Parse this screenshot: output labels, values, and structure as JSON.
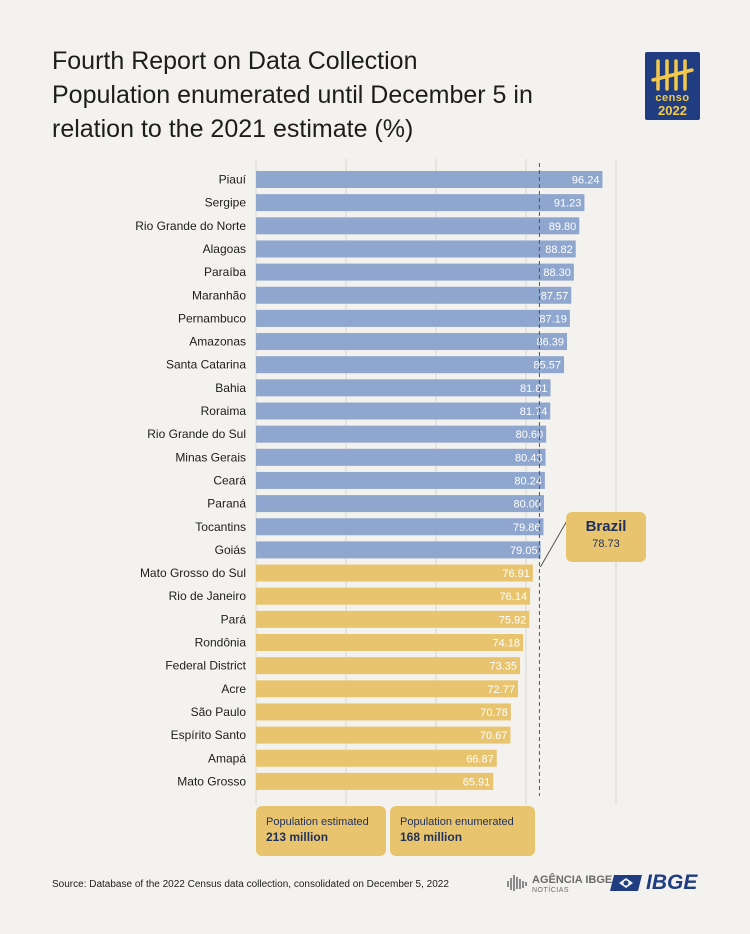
{
  "header": {
    "title": "Fourth Report on Data Collection",
    "subtitle_line1": "Population enumerated until December 5 in",
    "subtitle_line2": "relation to the 2021 estimate (%)"
  },
  "logo": {
    "icon": "censo-2022-logo-icon",
    "word": "censo",
    "year": "2022"
  },
  "chart_data": {
    "type": "bar",
    "orientation": "horizontal",
    "title": "Population enumerated until December 5 in relation to the 2021 estimate (%)",
    "categories": [
      "Piauí",
      "Sergipe",
      "Rio Grande do Norte",
      "Alagoas",
      "Paraíba",
      "Maranhão",
      "Pernambuco",
      "Amazonas",
      "Santa Catarina",
      "Bahia",
      "Roraima",
      "Rio Grande do Sul",
      "Minas Gerais",
      "Ceará",
      "Paraná",
      "Tocantins",
      "Goiás",
      "Mato Grosso do Sul",
      "Rio de Janeiro",
      "Pará",
      "Rondônia",
      "Federal District",
      "Acre",
      "São Paulo",
      "Espírito Santo",
      "Amapá",
      "Mato Grosso"
    ],
    "values": [
      96.24,
      91.23,
      89.8,
      88.82,
      88.3,
      87.57,
      87.19,
      86.39,
      85.57,
      81.81,
      81.74,
      80.6,
      80.43,
      80.24,
      80.0,
      79.86,
      79.05,
      76.91,
      76.14,
      75.92,
      74.18,
      73.35,
      72.77,
      70.78,
      70.67,
      66.87,
      65.91
    ],
    "value_labels": [
      "96.24",
      "91.23",
      "89.80",
      "88.82",
      "88.30",
      "87.57",
      "87.19",
      "86.39",
      "85.57",
      "81.81",
      "81.74",
      "80.60",
      "80.43",
      "80.24",
      "80.00",
      "79.86",
      "79.05",
      "76.91",
      "76.14",
      "75.92",
      "74.18",
      "73.35",
      "72.77",
      "70.78",
      "70.67",
      "66.87",
      "65.91"
    ],
    "xlim": [
      0,
      100
    ],
    "grid": true,
    "reference_line": {
      "label": "Brazil",
      "value": 78.73,
      "value_label": "78.73"
    },
    "colors": {
      "above_reference": "#8fa6cf",
      "below_reference": "#e8c46e",
      "grid": "#e2dfda",
      "reference": "#555555"
    }
  },
  "legend": {
    "estimated_label": "Population estimated",
    "estimated_value": "213 million",
    "enumerated_label": "Population enumerated",
    "enumerated_value": "168 million"
  },
  "footer": {
    "source": "Source: Database of the 2022 Census data collection, consolidated on December 5, 2022",
    "agencia_title": "AGÊNCIA IBGE",
    "agencia_sub": "NOTÍCIAS",
    "agencia_icon": "agencia-ibge-icon",
    "ibge_text": "IBGE",
    "ibge_icon": "ibge-flag-icon"
  }
}
